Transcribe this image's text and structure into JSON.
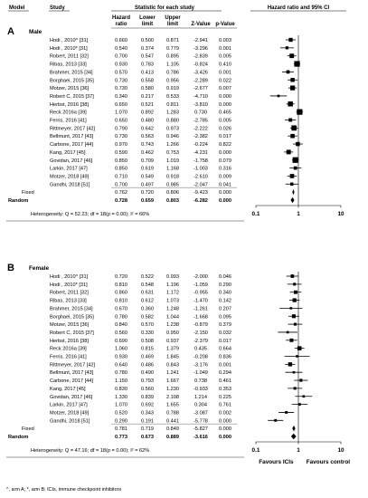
{
  "headers": {
    "model": "Model",
    "study": "Study",
    "stats": "Statistic for each study",
    "plot": "Hazard ratio and 95% CI",
    "hr_line1": "Hazard",
    "hr_line2": "ratio",
    "lower_line1": "Lower",
    "lower_line2": "limit",
    "upper_line1": "Upper",
    "upper_line2": "limit",
    "z": "Z-Value",
    "p": "p-Value"
  },
  "footnote": "^, arm A; *, arm B; ICIs, immune checkpoint inhibitors",
  "fixed_label": "Fixed",
  "random_label": "Random",
  "chart_data": [
    {
      "type": "forest",
      "panel": "A",
      "subgroup": "Male",
      "x_scale": "log",
      "xlim": [
        0.1,
        10
      ],
      "x_ticks": [
        "0.1",
        "1",
        "10"
      ],
      "reference_line": 1,
      "rows": [
        {
          "study": "Hodi , 2010^ [31]",
          "hr": "0.660",
          "lower": "0.500",
          "upper": "0.871",
          "z": "-2.941",
          "p": "0.003"
        },
        {
          "study": "Hodi , 2010* [31]",
          "hr": "0.540",
          "lower": "0.374",
          "upper": "0.779",
          "z": "-3.296",
          "p": "0.001"
        },
        {
          "study": "Robert, 2011 [32]",
          "hr": "0.700",
          "lower": "0.547",
          "upper": "0.895",
          "z": "-2.839",
          "p": "0.005"
        },
        {
          "study": "Ribas, 2013 [33]",
          "hr": "0.930",
          "lower": "0.783",
          "upper": "1.105",
          "z": "-0.824",
          "p": "0.410"
        },
        {
          "study": "Brahmer, 2015 [34]",
          "hr": "0.570",
          "lower": "0.413",
          "upper": "0.786",
          "z": "-3.426",
          "p": "0.001"
        },
        {
          "study": "Borghaei, 2015 [35]",
          "hr": "0.730",
          "lower": "0.558",
          "upper": "0.956",
          "z": "-2.289",
          "p": "0.022"
        },
        {
          "study": "Motzer, 2015 [36]",
          "hr": "0.730",
          "lower": "0.580",
          "upper": "0.919",
          "z": "-2.677",
          "p": "0.007"
        },
        {
          "study": "Robert C, 2015 [37]",
          "hr": "0.340",
          "lower": "0.217",
          "upper": "0.533",
          "z": "-4.710",
          "p": "0.000"
        },
        {
          "study": "Herbst, 2016 [38]",
          "hr": "0.650",
          "lower": "0.521",
          "upper": "0.811",
          "z": "-3.810",
          "p": "0.000"
        },
        {
          "study": "Reck 2016a [39]",
          "hr": "1.070",
          "lower": "0.892",
          "upper": "1.283",
          "z": "0.730",
          "p": "0.465"
        },
        {
          "study": "Ferris, 2016 [41]",
          "hr": "0.650",
          "lower": "0.480",
          "upper": "0.880",
          "z": "-2.785",
          "p": "0.005"
        },
        {
          "study": "Rittmeyer, 2017 [42]",
          "hr": "0.790",
          "lower": "0.642",
          "upper": "0.973",
          "z": "-2.222",
          "p": "0.026"
        },
        {
          "study": "Bellmunt, 2017 [43]",
          "hr": "0.730",
          "lower": "0.563",
          "upper": "0.946",
          "z": "-2.382",
          "p": "0.017"
        },
        {
          "study": "Carbone, 2017 [44]",
          "hr": "0.970",
          "lower": "0.743",
          "upper": "1.266",
          "z": "-0.224",
          "p": "0.822"
        },
        {
          "study": "Kang, 2017 [45]",
          "hr": "0.590",
          "lower": "0.462",
          "upper": "0.753",
          "z": "-4.231",
          "p": "0.000"
        },
        {
          "study": "Govidan, 2017 [46]",
          "hr": "0.850",
          "lower": "0.709",
          "upper": "1.019",
          "z": "-1.758",
          "p": "0.079"
        },
        {
          "study": "Larkin, 2017 [47]",
          "hr": "0.850",
          "lower": "0.619",
          "upper": "1.168",
          "z": "-1.003",
          "p": "0.316"
        },
        {
          "study": "Motzer, 2018 [49]",
          "hr": "0.710",
          "lower": "0.549",
          "upper": "0.918",
          "z": "-2.610",
          "p": "0.009"
        },
        {
          "study": "Gandhi, 2018 [51]",
          "hr": "0.700",
          "lower": "0.497",
          "upper": "0.985",
          "z": "-2.047",
          "p": "0.041"
        }
      ],
      "fixed": {
        "hr": "0.762",
        "lower": "0.720",
        "upper": "0.806",
        "z": "-9.423",
        "p": "0.000"
      },
      "random": {
        "hr": "0.728",
        "lower": "0.659",
        "upper": "0.803",
        "z": "-6.282",
        "p": "0.000"
      },
      "heterogeneity": "Heterogeneity: Q = 52.23; df = 18(p = 0.00); I² = 66%"
    },
    {
      "type": "forest",
      "panel": "B",
      "subgroup": "Female",
      "x_scale": "log",
      "xlim": [
        0.1,
        10
      ],
      "x_ticks": [
        "0.1",
        "1",
        "10"
      ],
      "reference_line": 1,
      "favours_left": "Favours ICIs",
      "favours_right": "Favours control",
      "rows": [
        {
          "study": "Hodi , 2010^ [31]",
          "hr": "0.720",
          "lower": "0.522",
          "upper": "0.993",
          "z": "-2.000",
          "p": "0.046"
        },
        {
          "study": "Hodi , 2010* [31]",
          "hr": "0.810",
          "lower": "0.548",
          "upper": "1.196",
          "z": "-1.059",
          "p": "0.290"
        },
        {
          "study": "Robert, 2011 [32]",
          "hr": "0.860",
          "lower": "0.631",
          "upper": "1.172",
          "z": "-0.955",
          "p": "0.340"
        },
        {
          "study": "Ribas, 2013 [33]",
          "hr": "0.810",
          "lower": "0.612",
          "upper": "1.073",
          "z": "-1.470",
          "p": "0.142"
        },
        {
          "study": "Brahmer, 2015 [34]",
          "hr": "0.670",
          "lower": "0.360",
          "upper": "1.248",
          "z": "-1.261",
          "p": "0.207"
        },
        {
          "study": "Borghaei, 2015 [35]",
          "hr": "0.780",
          "lower": "0.582",
          "upper": "1.044",
          "z": "-1.668",
          "p": "0.095"
        },
        {
          "study": "Motzer, 2015 [36]",
          "hr": "0.840",
          "lower": "0.570",
          "upper": "1.238",
          "z": "-0.879",
          "p": "0.379"
        },
        {
          "study": "Robert C, 2015 [37]",
          "hr": "0.560",
          "lower": "0.330",
          "upper": "0.950",
          "z": "-2.150",
          "p": "0.032"
        },
        {
          "study": "Herbst, 2016 [38]",
          "hr": "0.690",
          "lower": "0.508",
          "upper": "0.937",
          "z": "-2.379",
          "p": "0.017"
        },
        {
          "study": "Reck 2016a [39]",
          "hr": "1.060",
          "lower": "0.815",
          "upper": "1.379",
          "z": "0.435",
          "p": "0.664"
        },
        {
          "study": "Ferris, 2016 [41]",
          "hr": "0.930",
          "lower": "0.469",
          "upper": "1.845",
          "z": "-0.208",
          "p": "0.836"
        },
        {
          "study": "Rittmeyer, 2017 [42]",
          "hr": "0.640",
          "lower": "0.486",
          "upper": "0.843",
          "z": "-3.176",
          "p": "0.001"
        },
        {
          "study": "Bellmunt, 2017 [43]",
          "hr": "0.780",
          "lower": "0.490",
          "upper": "1.241",
          "z": "-1.049",
          "p": "0.294"
        },
        {
          "study": "Carbone, 2017 [44]",
          "hr": "1.150",
          "lower": "0.793",
          "upper": "1.667",
          "z": "0.738",
          "p": "0.461"
        },
        {
          "study": "Kang, 2017 [45]",
          "hr": "0.830",
          "lower": "0.560",
          "upper": "1.230",
          "z": "-0.933",
          "p": "0.353"
        },
        {
          "study": "Govidan, 2017 [46]",
          "hr": "1.330",
          "lower": "0.839",
          "upper": "2.108",
          "z": "1.214",
          "p": "0.225"
        },
        {
          "study": "Larkin, 2017 [47]",
          "hr": "1.070",
          "lower": "0.692",
          "upper": "1.655",
          "z": "0.304",
          "p": "0.761"
        },
        {
          "study": "Motzer, 2018 [49]",
          "hr": "0.520",
          "lower": "0.343",
          "upper": "0.788",
          "z": "-3.087",
          "p": "0.002"
        },
        {
          "study": "Gandhi, 2018 [51]",
          "hr": "0.290",
          "lower": "0.191",
          "upper": "0.441",
          "z": "-5.778",
          "p": "0.000"
        }
      ],
      "fixed": {
        "hr": "0.781",
        "lower": "0.719",
        "upper": "0.849",
        "z": "-5.827",
        "p": "0.000"
      },
      "random": {
        "hr": "0.773",
        "lower": "0.673",
        "upper": "0.889",
        "z": "-3.616",
        "p": "0.000"
      },
      "heterogeneity": "Heterogeneity: Q = 47.16; df = 18(p = 0.00); I² = 62%"
    }
  ]
}
